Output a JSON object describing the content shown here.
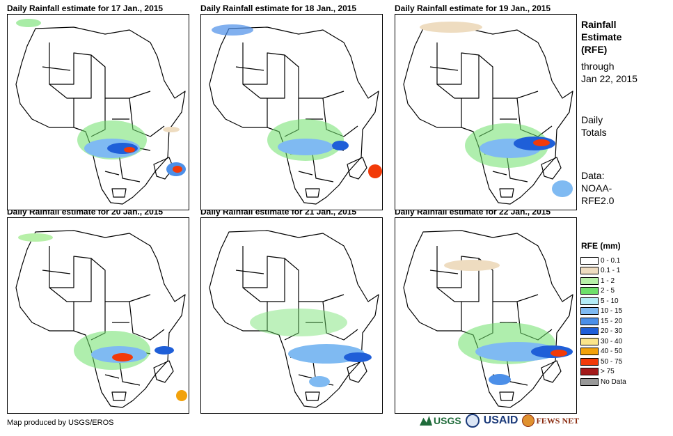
{
  "panels": [
    {
      "title": "Daily Rainfall estimate for 17 Jan., 2015"
    },
    {
      "title": "Daily Rainfall estimate for 18 Jan., 2015"
    },
    {
      "title": "Daily Rainfall estimate for 19 Jan., 2015"
    },
    {
      "title": "Daily Rainfall estimate for 20 Jan., 2015"
    },
    {
      "title": "Daily Rainfall estimate for 21 Jan., 2015"
    },
    {
      "title": "Daily Rainfall estimate for 22 Jan., 2015"
    }
  ],
  "side": {
    "title_line1": "Rainfall",
    "title_line2": "Estimate",
    "title_line3": "(RFE)",
    "through": "through",
    "date": "Jan 22, 2015",
    "totals_line1": "Daily",
    "totals_line2": "Totals",
    "data_line1": "Data:",
    "data_line2": "NOAA-",
    "data_line3": "RFE2.0"
  },
  "legend": {
    "title": "RFE (mm)",
    "items": [
      {
        "label": "0 - 0.1",
        "color": "#ffffff"
      },
      {
        "label": "0.1 - 1",
        "color": "#eedcc0"
      },
      {
        "label": "1 - 2",
        "color": "#b7f0a8"
      },
      {
        "label": "2 - 5",
        "color": "#6ee06a"
      },
      {
        "label": "5 - 10",
        "color": "#b4ecf6"
      },
      {
        "label": "10 - 15",
        "color": "#7fbaf2"
      },
      {
        "label": "15 - 20",
        "color": "#4c8fe8"
      },
      {
        "label": "20 - 30",
        "color": "#1f5fd8"
      },
      {
        "label": "30 - 40",
        "color": "#fbe589"
      },
      {
        "label": "40 - 50",
        "color": "#f2a20c"
      },
      {
        "label": "50 - 75",
        "color": "#f23a08"
      },
      {
        "label": "> 75",
        "color": "#a31a1a"
      },
      {
        "label": "No Data",
        "color": "#999999"
      }
    ]
  },
  "footer": {
    "credit": "Map produced by USGS/EROS",
    "logo_usgs": "USGS",
    "logo_usaid": "USAID",
    "logo_fews": "FEWS NET"
  }
}
